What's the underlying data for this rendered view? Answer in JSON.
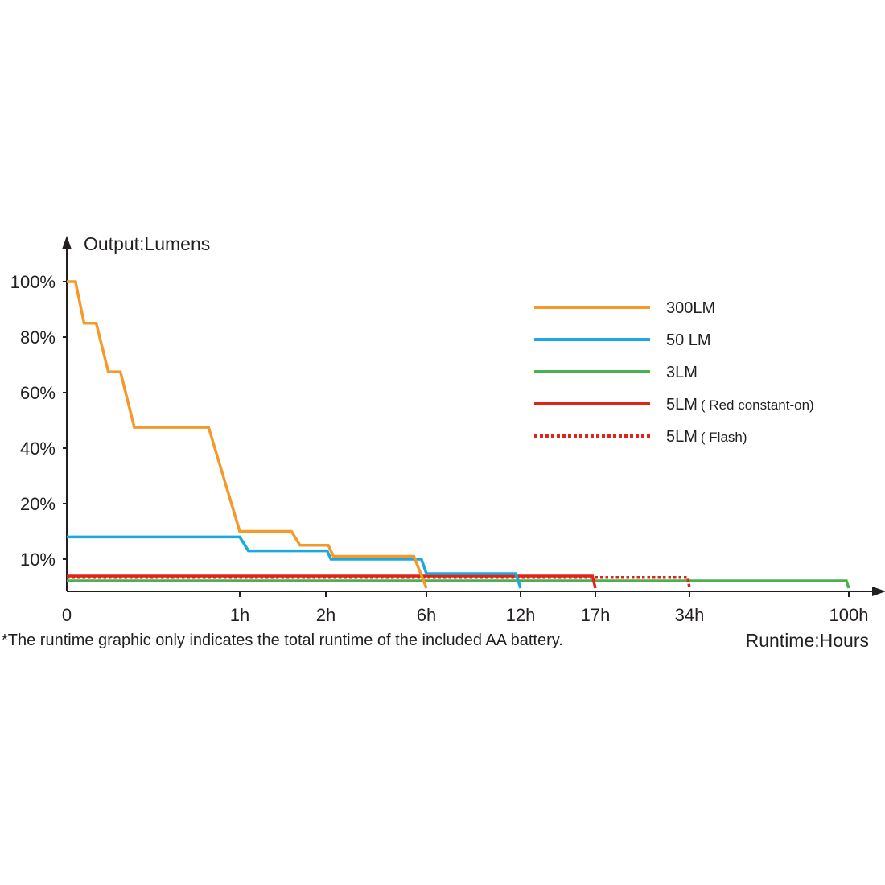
{
  "chart_data": {
    "type": "line",
    "title": "",
    "ylabel": "Output:Lumens",
    "xlabel": "Runtime:Hours",
    "x_ticks": [
      "0",
      "1h",
      "2h",
      "6h",
      "12h",
      "17h",
      "34h",
      "100h"
    ],
    "y_ticks": [
      "10%",
      "20%",
      "40%",
      "60%",
      "80%",
      "100%"
    ],
    "footnote": "*The runtime graphic only indicates the total runtime of the included AA battery.",
    "legend_position": "top-right",
    "grid": false,
    "series": [
      {
        "name": "300LM",
        "color": "#f39a2b",
        "dashed": false,
        "points": [
          [
            0,
            100
          ],
          [
            0.05,
            100
          ],
          [
            0.1,
            85
          ],
          [
            0.17,
            85
          ],
          [
            0.24,
            67.5
          ],
          [
            0.31,
            67.5
          ],
          [
            0.39,
            47.5
          ],
          [
            0.82,
            47.5
          ],
          [
            1.0,
            15
          ],
          [
            1.6,
            15
          ],
          [
            1.7,
            12.5
          ],
          [
            2.1,
            12.5
          ],
          [
            2.3,
            10.5
          ],
          [
            5.5,
            10.5
          ],
          [
            6.0,
            4
          ]
        ]
      },
      {
        "name": "50 LM",
        "color": "#1ca9e1",
        "dashed": false,
        "points": [
          [
            0,
            14
          ],
          [
            1.0,
            14
          ],
          [
            1.1,
            11.5
          ],
          [
            2.05,
            11.5
          ],
          [
            2.2,
            10
          ],
          [
            5.8,
            10
          ],
          [
            6.0,
            7
          ],
          [
            11.7,
            7
          ],
          [
            12.0,
            4
          ]
        ]
      },
      {
        "name": "3LM",
        "color": "#4bb04f",
        "dashed": false,
        "points": [
          [
            0,
            5.5
          ],
          [
            99,
            5.5
          ],
          [
            100,
            4
          ]
        ]
      },
      {
        "name": "5LM",
        "name_suffix": "Red constant-on",
        "color": "#e2231a",
        "dashed": false,
        "points": [
          [
            0,
            6.5
          ],
          [
            16.8,
            6.5
          ],
          [
            17.0,
            4
          ]
        ]
      },
      {
        "name": "5LM",
        "name_suffix": "Flash",
        "color": "#e2231a",
        "dashed": true,
        "points": [
          [
            0,
            6.2
          ],
          [
            33.7,
            6.2
          ],
          [
            34.0,
            4
          ]
        ]
      }
    ]
  }
}
